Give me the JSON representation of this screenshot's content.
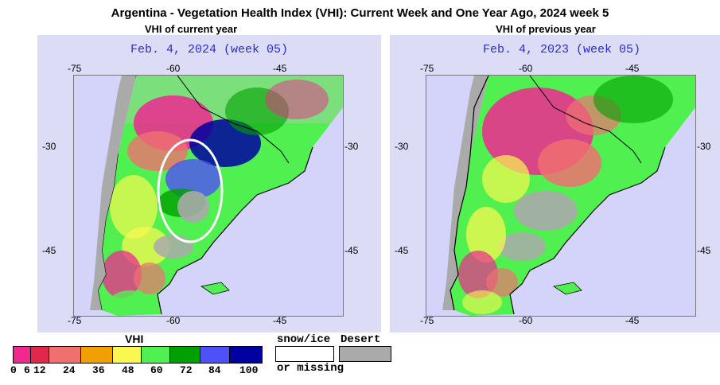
{
  "title": "Argentina - Vegetation Health Index (VHI): Current Week and One Year Ago, 2024 week 5",
  "panels": [
    {
      "subtitle": "VHI of current year",
      "date": "Feb. 4, 2024 (week 05)",
      "lon_ticks": [
        "-75",
        "-60",
        "-45"
      ],
      "lat_ticks": [
        "-30",
        "-45"
      ],
      "annotation": "white-ellipse-highlight"
    },
    {
      "subtitle": "VHI of previous year",
      "date": "Feb. 4, 2023 (week 05)",
      "lon_ticks": [
        "-75",
        "-60",
        "-45"
      ],
      "lat_ticks": [
        "-30",
        "-45"
      ]
    }
  ],
  "legend": {
    "title": "VHI",
    "labels": [
      "0",
      "6",
      "12",
      "24",
      "36",
      "48",
      "60",
      "72",
      "84",
      "100"
    ],
    "colors": [
      "#f02890",
      "#e0284c",
      "#f07070",
      "#f0a000",
      "#f8f850",
      "#50f050",
      "#00a000",
      "#5050f8",
      "#0000a0"
    ],
    "snow_label_1": "snow/ice",
    "snow_label_2": "or missing",
    "desert_label": "Desert"
  },
  "colors": {
    "ocean": "#d4d4fa",
    "panel_bg": "#dcdcf7",
    "desert": "#aaaaaa",
    "date_text": "#2b2bd6"
  }
}
